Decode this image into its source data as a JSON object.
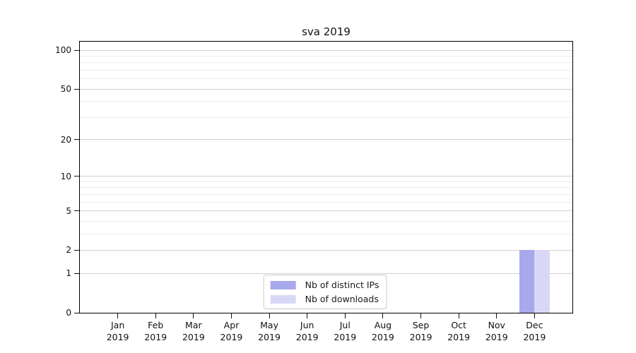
{
  "chart_data": {
    "type": "bar",
    "title": "sva 2019",
    "categories": [
      {
        "month": "Jan",
        "year": "2019"
      },
      {
        "month": "Feb",
        "year": "2019"
      },
      {
        "month": "Mar",
        "year": "2019"
      },
      {
        "month": "Apr",
        "year": "2019"
      },
      {
        "month": "May",
        "year": "2019"
      },
      {
        "month": "Jun",
        "year": "2019"
      },
      {
        "month": "Jul",
        "year": "2019"
      },
      {
        "month": "Aug",
        "year": "2019"
      },
      {
        "month": "Sep",
        "year": "2019"
      },
      {
        "month": "Oct",
        "year": "2019"
      },
      {
        "month": "Nov",
        "year": "2019"
      },
      {
        "month": "Dec",
        "year": "2019"
      }
    ],
    "series": [
      {
        "name": "Nb of distinct IPs",
        "color": "#a8a8ec",
        "values": [
          0,
          0,
          0,
          0,
          0,
          0,
          0,
          0,
          0,
          0,
          0,
          2
        ]
      },
      {
        "name": "Nb of downloads",
        "color": "#d8d8f6",
        "values": [
          0,
          0,
          0,
          0,
          0,
          0,
          0,
          0,
          0,
          0,
          0,
          2
        ]
      }
    ],
    "ylabel": "",
    "xlabel": "",
    "y_axis": {
      "scale": "symlog",
      "tick_values": [
        0,
        1,
        2,
        5,
        10,
        20,
        50,
        100
      ],
      "tick_labels": [
        "0",
        "1",
        "2",
        "5",
        "10",
        "20",
        "50",
        "100"
      ],
      "minor_gridline_values": [
        3,
        4,
        6,
        7,
        8,
        9,
        30,
        40,
        60,
        70,
        80,
        90
      ],
      "max": 100
    },
    "legend": {
      "position": "lower center",
      "items": [
        {
          "label": "Nb of distinct IPs",
          "color": "#a8a8ec"
        },
        {
          "label": "Nb of downloads",
          "color": "#d8d8f6"
        }
      ]
    },
    "grid": true,
    "background_color": "#ffffff"
  }
}
